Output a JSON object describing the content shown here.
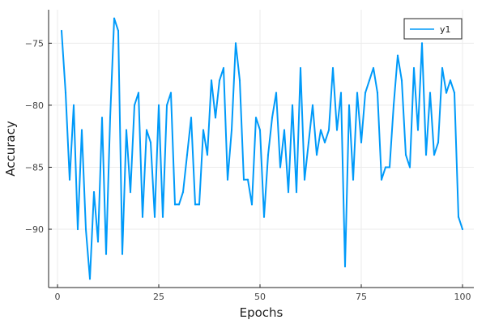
{
  "chart_data": {
    "type": "line",
    "title": "",
    "xlabel": "Epochs",
    "ylabel": "Accuracy",
    "xlim": [
      -2.2,
      102.8
    ],
    "ylim": [
      -94.7,
      -72.3
    ],
    "x_ticks": [
      0,
      25,
      50,
      75,
      100
    ],
    "y_ticks": [
      -90,
      -85,
      -80,
      -75
    ],
    "grid": true,
    "legend": "top-right",
    "series": [
      {
        "name": "y1",
        "color": "#009AF9",
        "x": [
          1,
          2,
          3,
          4,
          5,
          6,
          7,
          8,
          9,
          10,
          11,
          12,
          13,
          14,
          15,
          16,
          17,
          18,
          19,
          20,
          21,
          22,
          23,
          24,
          25,
          26,
          27,
          28,
          29,
          30,
          31,
          32,
          33,
          34,
          35,
          36,
          37,
          38,
          39,
          40,
          41,
          42,
          43,
          44,
          45,
          46,
          47,
          48,
          49,
          50,
          51,
          52,
          53,
          54,
          55,
          56,
          57,
          58,
          59,
          60,
          61,
          62,
          63,
          64,
          65,
          66,
          67,
          68,
          69,
          70,
          71,
          72,
          73,
          74,
          75,
          76,
          77,
          78,
          79,
          80,
          81,
          82,
          83,
          84,
          85,
          86,
          87,
          88,
          89,
          90,
          91,
          92,
          93,
          94,
          95,
          96,
          97,
          98,
          99,
          100
        ],
        "values": [
          -74,
          -79,
          -86,
          -80,
          -90,
          -82,
          -90,
          -94,
          -87,
          -91,
          -81,
          -92,
          -81,
          -73,
          -74,
          -92,
          -82,
          -87,
          -80,
          -79,
          -89,
          -82,
          -83,
          -89,
          -80,
          -89,
          -80,
          -79,
          -88,
          -88,
          -87,
          -84,
          -81,
          -88,
          -88,
          -82,
          -84,
          -78,
          -81,
          -78,
          -77,
          -86,
          -82,
          -75,
          -78,
          -86,
          -86,
          -88,
          -81,
          -82,
          -89,
          -84,
          -81,
          -79,
          -85,
          -82,
          -87,
          -80,
          -87,
          -77,
          -86,
          -83,
          -80,
          -84,
          -82,
          -83,
          -82,
          -77,
          -82,
          -79,
          -93,
          -80,
          -86,
          -79,
          -83,
          -79,
          -78,
          -77,
          -79,
          -86,
          -85,
          -85,
          -80,
          -76,
          -78,
          -84,
          -85,
          -77,
          -82,
          -75,
          -84,
          -79,
          -84,
          -83,
          -77,
          -79,
          -78,
          -79,
          -89,
          -90
        ]
      }
    ]
  }
}
